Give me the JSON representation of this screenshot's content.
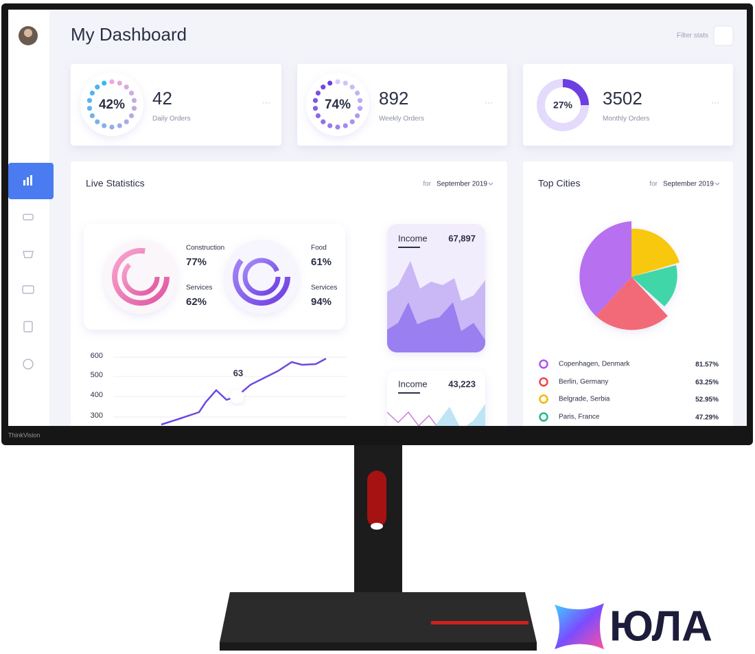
{
  "header": {
    "title": "My Dashboard",
    "filter": "Filter stats"
  },
  "stat_cards": [
    {
      "percent": "42%",
      "value": "42",
      "label": "Daily Orders"
    },
    {
      "percent": "74%",
      "value": "892",
      "label": "Weekly Orders"
    },
    {
      "percent": "27%",
      "value": "3502",
      "label": "Monthly Orders"
    }
  ],
  "live_statistics": {
    "title": "Live Statistics",
    "period_prefix": "for",
    "period": "September 2019",
    "rings": [
      {
        "label": "Construction",
        "value": "77%"
      },
      {
        "label": "Services",
        "value": "62%"
      },
      {
        "label": "Food",
        "value": "61%"
      },
      {
        "label": "Services",
        "value": "94%"
      }
    ],
    "line_chart": {
      "yticks": [
        "600",
        "500",
        "400",
        "300"
      ],
      "annotation": "63"
    },
    "income_cards": [
      {
        "label": "Income",
        "value": "67,897"
      },
      {
        "label": "Income",
        "value": "43,223"
      }
    ]
  },
  "top_cities": {
    "title": "Top Cities",
    "period_prefix": "for",
    "period": "September 2019",
    "cities": [
      {
        "name": "Copenhagen, Denmark",
        "value": "81.57%"
      },
      {
        "name": "Berlin, Germany",
        "value": "63.25%"
      },
      {
        "name": "Belgrade, Serbia",
        "value": "52.95%"
      },
      {
        "name": "Paris, France",
        "value": "47.29%"
      }
    ]
  },
  "brand": "ThinkVision",
  "logo": "ЮЛА"
}
